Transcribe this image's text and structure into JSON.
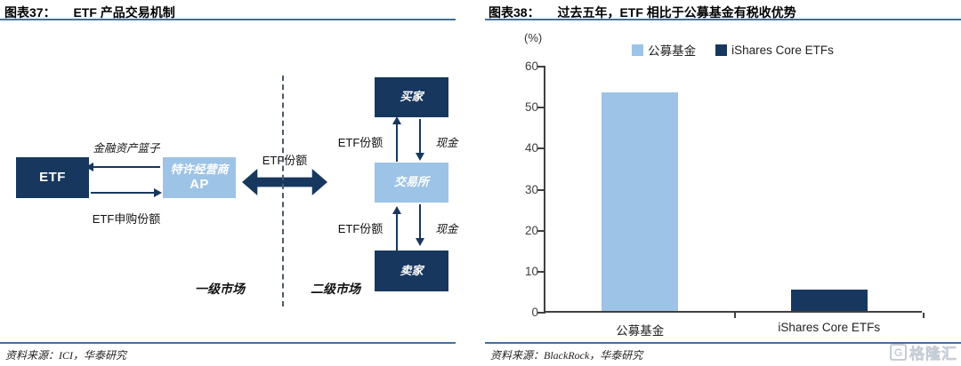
{
  "left_panel": {
    "title_prefix": "图表37：",
    "title": "ETF 产品交易机制",
    "source": "资料来源：ICI，华泰研究",
    "diagram": {
      "etf_box": "ETF",
      "ap_box_line1": "特许经营商",
      "ap_box_line2": "AP",
      "label_basket": "金融资产篮子",
      "label_subscription": "ETF申购份额",
      "label_etf_shares_mid": "ETF份额",
      "buyer_box": "买家",
      "exchange_box": "交易所",
      "seller_box": "卖家",
      "label_etf_shares_top": "ETF份额",
      "label_cash_top": "现金",
      "label_etf_shares_bottom": "ETF份额",
      "label_cash_bottom": "现金",
      "label_primary_market": "一级市场",
      "label_secondary_market": "二级市场"
    }
  },
  "right_panel": {
    "title_prefix": "图表38：",
    "title": "过去五年，ETF 相比于公募基金有税收优势",
    "source": "资料来源：BlackRock，华泰研究"
  },
  "chart_data": {
    "type": "bar",
    "title": "过去五年，ETF 相比于公募基金有税收优势",
    "unit_label": "(%)",
    "categories": [
      "公募基金",
      "iShares Core ETFs"
    ],
    "values": [
      53.3,
      5.2
    ],
    "bar_colors": [
      "#9DC3E6",
      "#17375E"
    ],
    "legend": [
      {
        "label": "公募基金",
        "color": "#9DC3E6"
      },
      {
        "label": "iShares Core ETFs",
        "color": "#17375E"
      }
    ],
    "ylim": [
      0,
      60
    ],
    "yticks": [
      0,
      10,
      20,
      30,
      40,
      50,
      60
    ],
    "grid": false,
    "legend_position": "top"
  },
  "watermark": {
    "icon_letter": "G",
    "text": "格隆汇"
  },
  "colors": {
    "navy": "#17375E",
    "light_blue": "#9DC3E6",
    "rule_blue": "#41719C"
  }
}
